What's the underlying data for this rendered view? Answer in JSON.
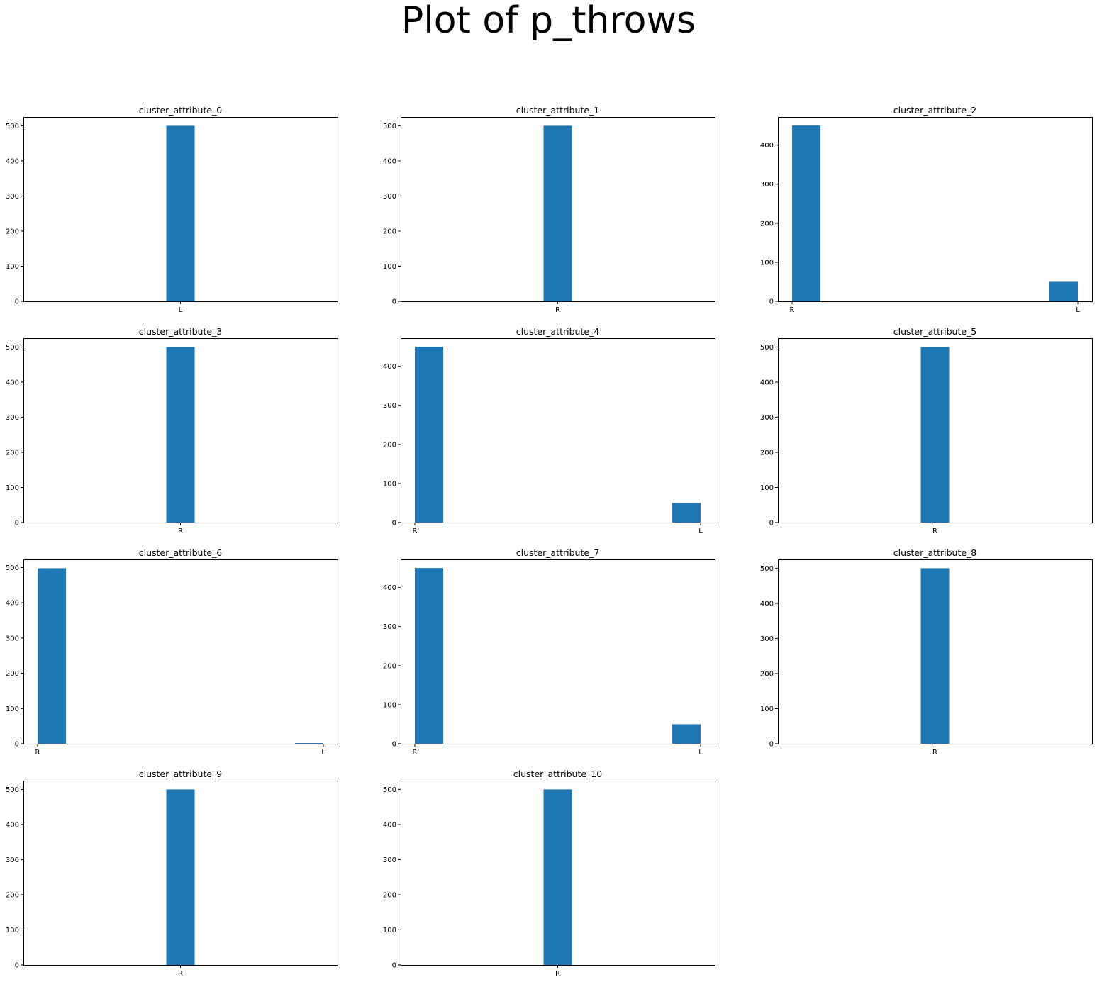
{
  "figure": {
    "title": "Plot of p_throws"
  },
  "colors": {
    "bar": "#1f77b4",
    "axis": "#000000",
    "background": "#ffffff"
  },
  "chart_data": [
    {
      "type": "bar",
      "title": "cluster_attribute_0",
      "categories": [
        "L"
      ],
      "values": [
        500
      ],
      "ylim": [
        0,
        525
      ],
      "yticks": [
        0,
        100,
        200,
        300,
        400,
        500
      ],
      "grid": false
    },
    {
      "type": "bar",
      "title": "cluster_attribute_1",
      "categories": [
        "R"
      ],
      "values": [
        500
      ],
      "ylim": [
        0,
        525
      ],
      "yticks": [
        0,
        100,
        200,
        300,
        400,
        500
      ],
      "grid": false
    },
    {
      "type": "bar",
      "title": "cluster_attribute_2",
      "categories": [
        "R",
        "L"
      ],
      "values": [
        450,
        50
      ],
      "ylim": [
        0,
        472
      ],
      "yticks": [
        0,
        100,
        200,
        300,
        400
      ],
      "grid": false
    },
    {
      "type": "bar",
      "title": "cluster_attribute_3",
      "categories": [
        "R"
      ],
      "values": [
        500
      ],
      "ylim": [
        0,
        525
      ],
      "yticks": [
        0,
        100,
        200,
        300,
        400,
        500
      ],
      "grid": false
    },
    {
      "type": "bar",
      "title": "cluster_attribute_4",
      "categories": [
        "R",
        "L"
      ],
      "values": [
        450,
        50
      ],
      "ylim": [
        0,
        472
      ],
      "yticks": [
        0,
        100,
        200,
        300,
        400
      ],
      "grid": false
    },
    {
      "type": "bar",
      "title": "cluster_attribute_5",
      "categories": [
        "R"
      ],
      "values": [
        500
      ],
      "ylim": [
        0,
        525
      ],
      "yticks": [
        0,
        100,
        200,
        300,
        400,
        500
      ],
      "grid": false
    },
    {
      "type": "bar",
      "title": "cluster_attribute_6",
      "categories": [
        "R",
        "L"
      ],
      "values": [
        498,
        2
      ],
      "ylim": [
        0,
        523
      ],
      "yticks": [
        0,
        100,
        200,
        300,
        400,
        500
      ],
      "grid": false
    },
    {
      "type": "bar",
      "title": "cluster_attribute_7",
      "categories": [
        "R",
        "L"
      ],
      "values": [
        450,
        50
      ],
      "ylim": [
        0,
        472
      ],
      "yticks": [
        0,
        100,
        200,
        300,
        400
      ],
      "grid": false
    },
    {
      "type": "bar",
      "title": "cluster_attribute_8",
      "categories": [
        "R"
      ],
      "values": [
        500
      ],
      "ylim": [
        0,
        525
      ],
      "yticks": [
        0,
        100,
        200,
        300,
        400,
        500
      ],
      "grid": false
    },
    {
      "type": "bar",
      "title": "cluster_attribute_9",
      "categories": [
        "R"
      ],
      "values": [
        500
      ],
      "ylim": [
        0,
        525
      ],
      "yticks": [
        0,
        100,
        200,
        300,
        400,
        500
      ],
      "grid": false
    },
    {
      "type": "bar",
      "title": "cluster_attribute_10",
      "categories": [
        "R"
      ],
      "values": [
        500
      ],
      "ylim": [
        0,
        525
      ],
      "yticks": [
        0,
        100,
        200,
        300,
        400,
        500
      ],
      "grid": false
    }
  ]
}
